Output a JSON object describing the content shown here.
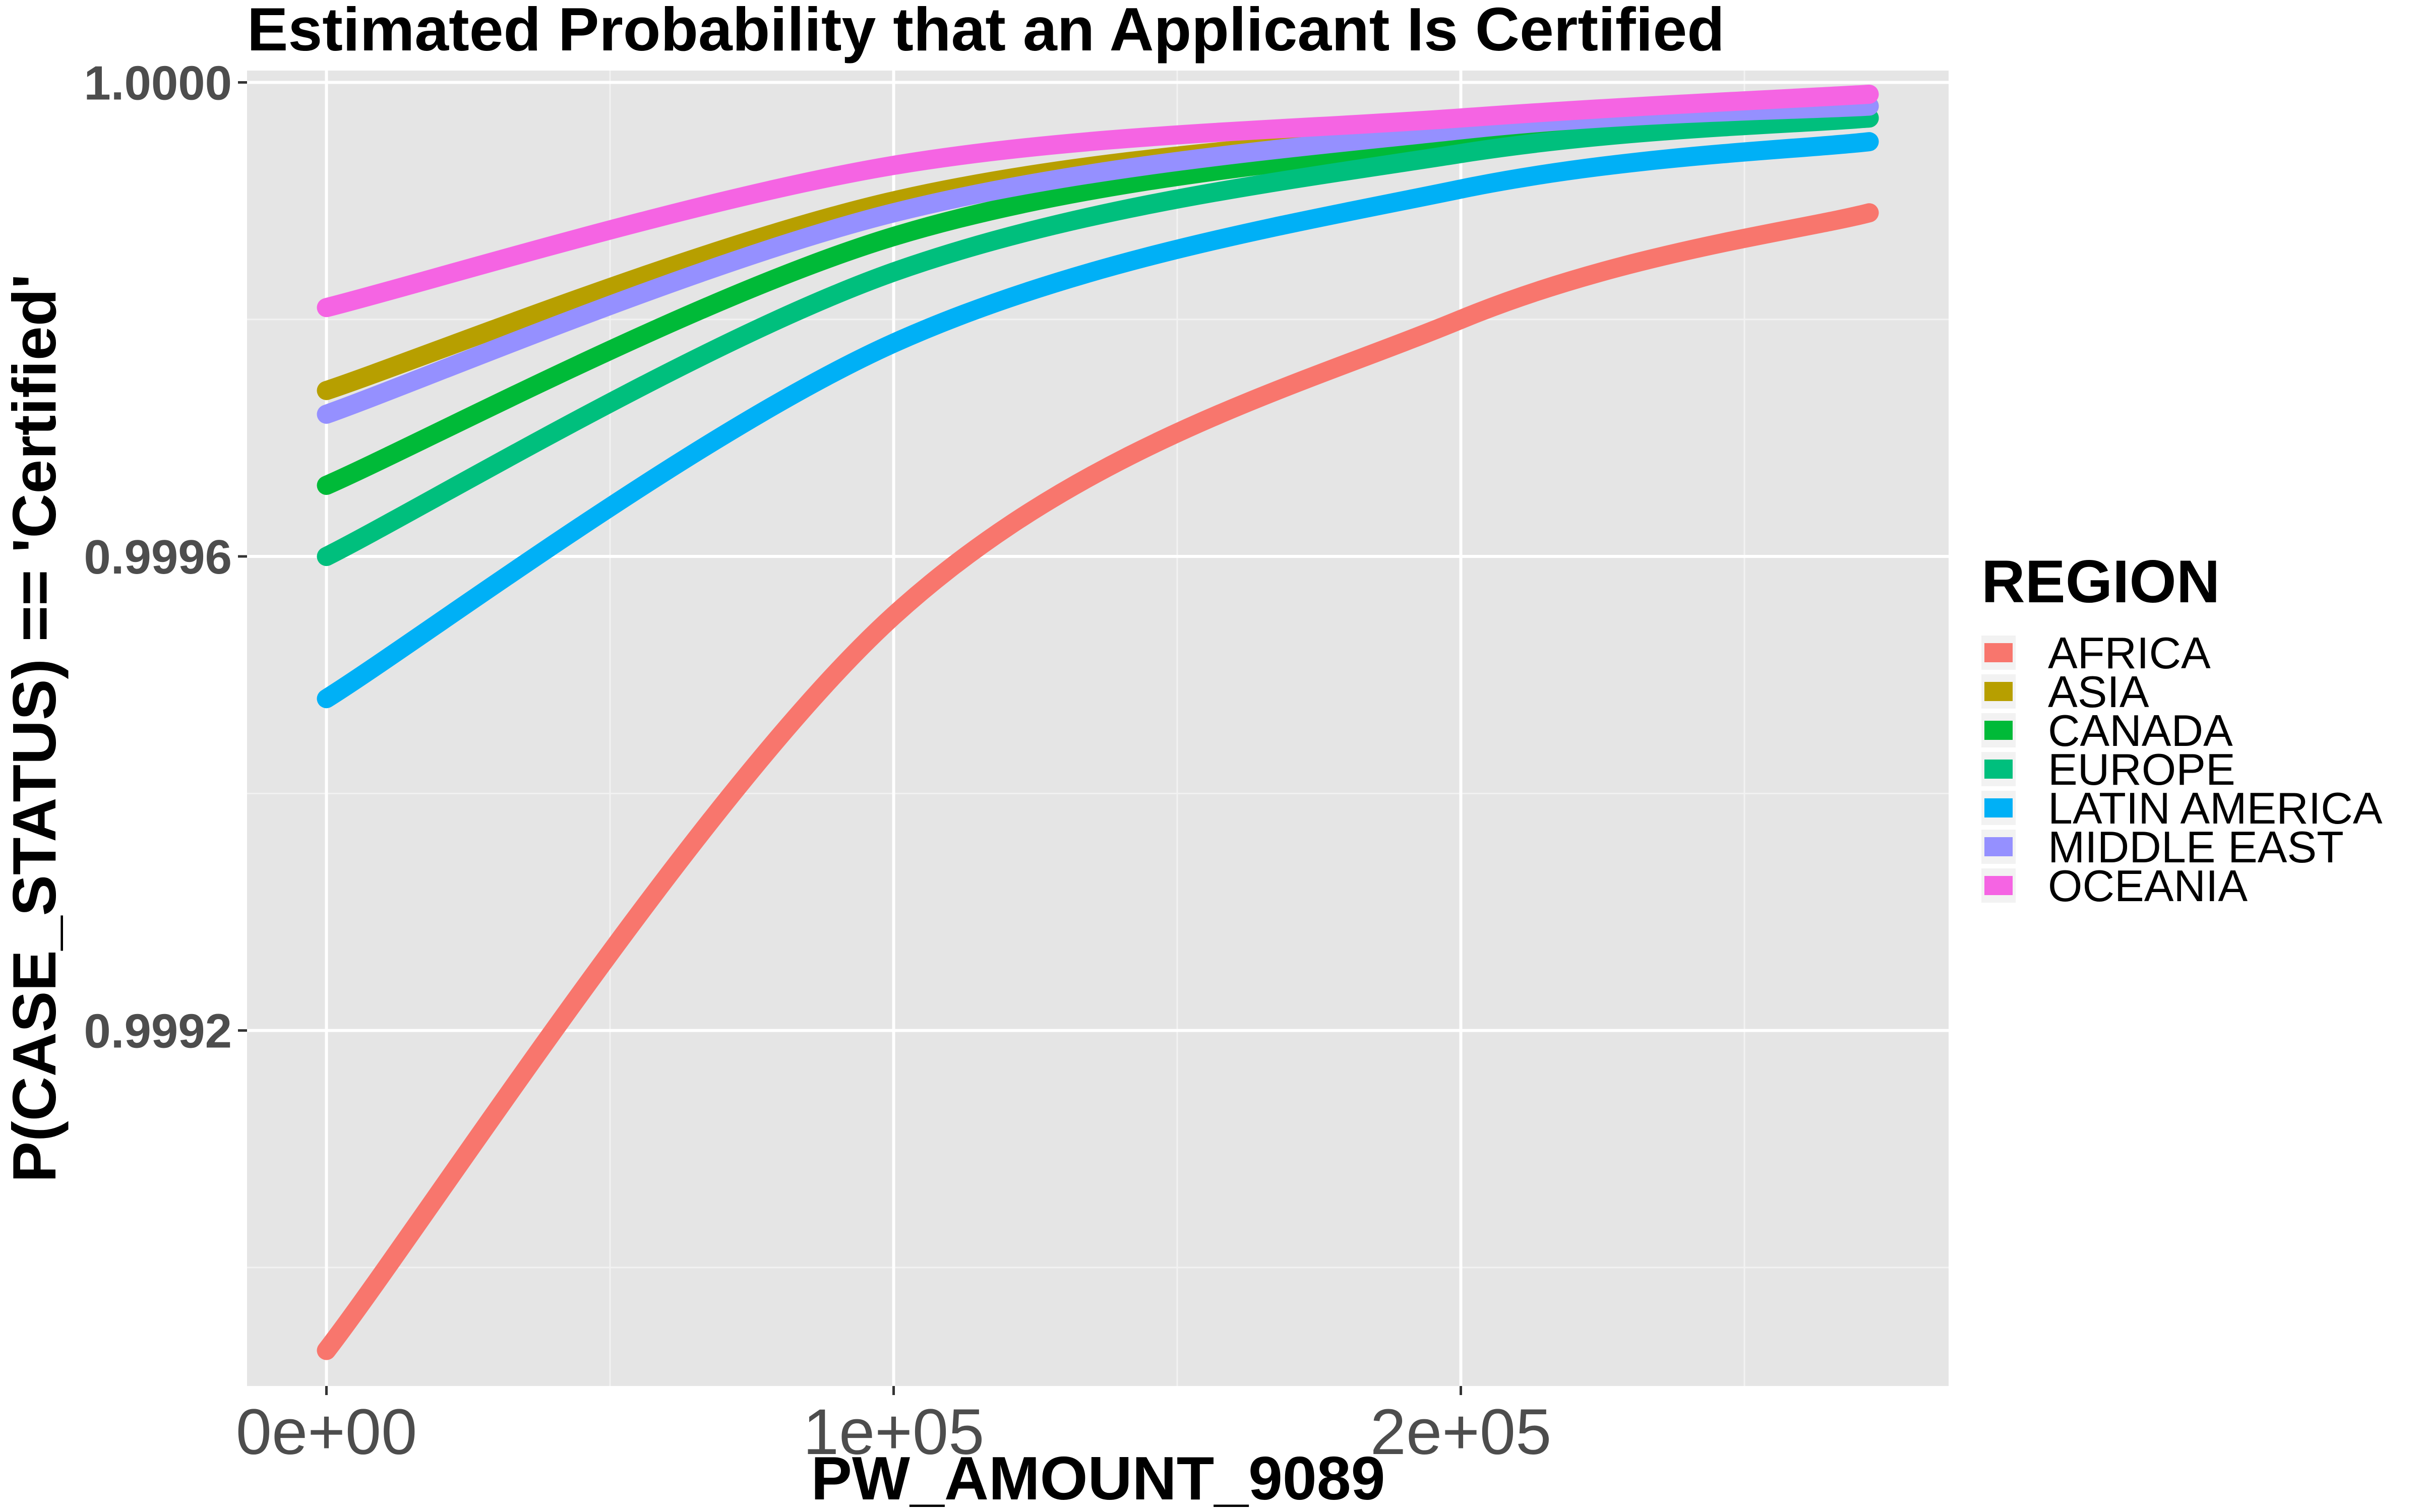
{
  "chart_data": {
    "type": "line",
    "title": "Estimated Probability that an Applicant Is Certified",
    "xlabel": "PW_AMOUNT_9089",
    "ylabel": "P(CASE_STATUS) == 'Certified'",
    "xlim": [
      -14000,
      286000
    ],
    "ylim": [
      0.9989,
      1.00001
    ],
    "x_ticks": [
      0,
      100000,
      200000
    ],
    "x_tick_labels": [
      "0e+00",
      "1e+05",
      "2e+05"
    ],
    "y_ticks": [
      0.9992,
      0.9996,
      1.0
    ],
    "y_tick_labels": [
      "0.9992",
      "0.9996",
      "1.0000"
    ],
    "grid": true,
    "legend": {
      "title": "REGION",
      "position": "right"
    },
    "series": [
      {
        "name": "AFRICA",
        "color": "#F8766D",
        "x": [
          0,
          100000,
          200000,
          272000
        ],
        "y": [
          0.99893,
          0.99955,
          0.9998,
          0.99989
        ]
      },
      {
        "name": "ASIA",
        "color": "#B79F00",
        "x": [
          0,
          100000,
          200000,
          272000
        ],
        "y": [
          0.99974,
          0.9999,
          0.99996,
          0.99998
        ]
      },
      {
        "name": "CANADA",
        "color": "#00BA38",
        "x": [
          0,
          100000,
          200000,
          272000
        ],
        "y": [
          0.99966,
          0.99987,
          0.99995,
          0.99997
        ]
      },
      {
        "name": "EUROPE",
        "color": "#00BF7D",
        "x": [
          0,
          100000,
          200000,
          272000
        ],
        "y": [
          0.9996,
          0.99984,
          0.99994,
          0.99997
        ]
      },
      {
        "name": "LATIN AMERICA",
        "color": "#00B0F6",
        "x": [
          0,
          100000,
          200000,
          272000
        ],
        "y": [
          0.99948,
          0.99978,
          0.99991,
          0.99995
        ]
      },
      {
        "name": "MIDDLE EAST",
        "color": "#9590FF",
        "x": [
          0,
          100000,
          200000,
          272000
        ],
        "y": [
          0.99972,
          0.99989,
          0.99996,
          0.99998
        ]
      },
      {
        "name": "OCEANIA",
        "color": "#F564E3",
        "x": [
          0,
          100000,
          200000,
          272000
        ],
        "y": [
          0.99981,
          0.99993,
          0.99997,
          0.99999
        ]
      }
    ]
  }
}
